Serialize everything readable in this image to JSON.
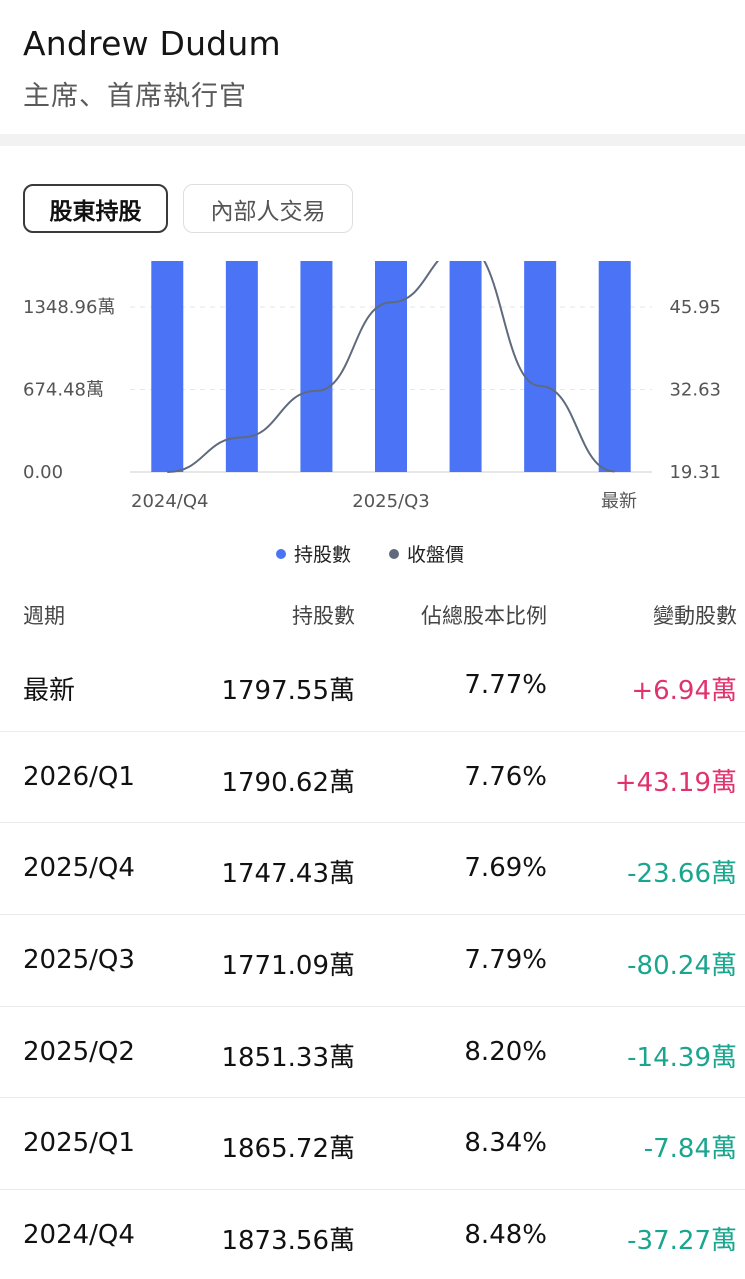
{
  "header": {
    "name": "Andrew Dudum",
    "title": "主席、首席執行官"
  },
  "tabs": [
    {
      "label": "股東持股",
      "active": true
    },
    {
      "label": "內部人交易",
      "active": false
    }
  ],
  "colors": {
    "bar": "#4a74f5",
    "line": "#5f6a7d",
    "positive": "#e0336e",
    "negative": "#1aa58f"
  },
  "chart_data": {
    "type": "bar",
    "categories": [
      "2024/Q4",
      "2025/Q1",
      "2025/Q2",
      "2025/Q3",
      "2025/Q4",
      "2026/Q1",
      "最新"
    ],
    "x_tick_labels": [
      "2024/Q4",
      "",
      "",
      "2025/Q3",
      "",
      "",
      "最新"
    ],
    "series": [
      {
        "name": "持股數",
        "type": "bar",
        "axis": "left",
        "values": [
          1873.56,
          1865.72,
          1851.33,
          1771.09,
          1747.43,
          1790.62,
          1797.55
        ]
      },
      {
        "name": "收盤價",
        "type": "line",
        "axis": "right",
        "values": [
          19.31,
          24.9,
          32.4,
          46.7,
          55.8,
          33.2,
          19.4
        ]
      }
    ],
    "left_axis": {
      "ticks": [
        "0.00",
        "674.48萬",
        "1348.96萬"
      ],
      "values": [
        0,
        674.48,
        1348.96
      ],
      "max": 1348.96
    },
    "right_axis": {
      "ticks": [
        "19.31",
        "32.63",
        "45.95"
      ],
      "values": [
        19.31,
        32.63,
        45.95
      ]
    },
    "grid": true,
    "legend": "bottom-center"
  },
  "legend": [
    {
      "label": "持股數",
      "color": "#4a74f5"
    },
    {
      "label": "收盤價",
      "color": "#5f6a7d"
    }
  ],
  "table": {
    "headers": {
      "period": "週期",
      "shares": "持股數",
      "pct": "佔總股本比例",
      "change": "變動股數"
    },
    "rows": [
      {
        "period": "最新",
        "shares": "1797.55萬",
        "pct": "7.77%",
        "change": "+6.94萬",
        "dir": "pos"
      },
      {
        "period": "2026/Q1",
        "shares": "1790.62萬",
        "pct": "7.76%",
        "change": "+43.19萬",
        "dir": "pos"
      },
      {
        "period": "2025/Q4",
        "shares": "1747.43萬",
        "pct": "7.69%",
        "change": "-23.66萬",
        "dir": "neg"
      },
      {
        "period": "2025/Q3",
        "shares": "1771.09萬",
        "pct": "7.79%",
        "change": "-80.24萬",
        "dir": "neg"
      },
      {
        "period": "2025/Q2",
        "shares": "1851.33萬",
        "pct": "8.20%",
        "change": "-14.39萬",
        "dir": "neg"
      },
      {
        "period": "2025/Q1",
        "shares": "1865.72萬",
        "pct": "8.34%",
        "change": "-7.84萬",
        "dir": "neg"
      },
      {
        "period": "2024/Q4",
        "shares": "1873.56萬",
        "pct": "8.48%",
        "change": "-37.27萬",
        "dir": "neg"
      }
    ]
  }
}
